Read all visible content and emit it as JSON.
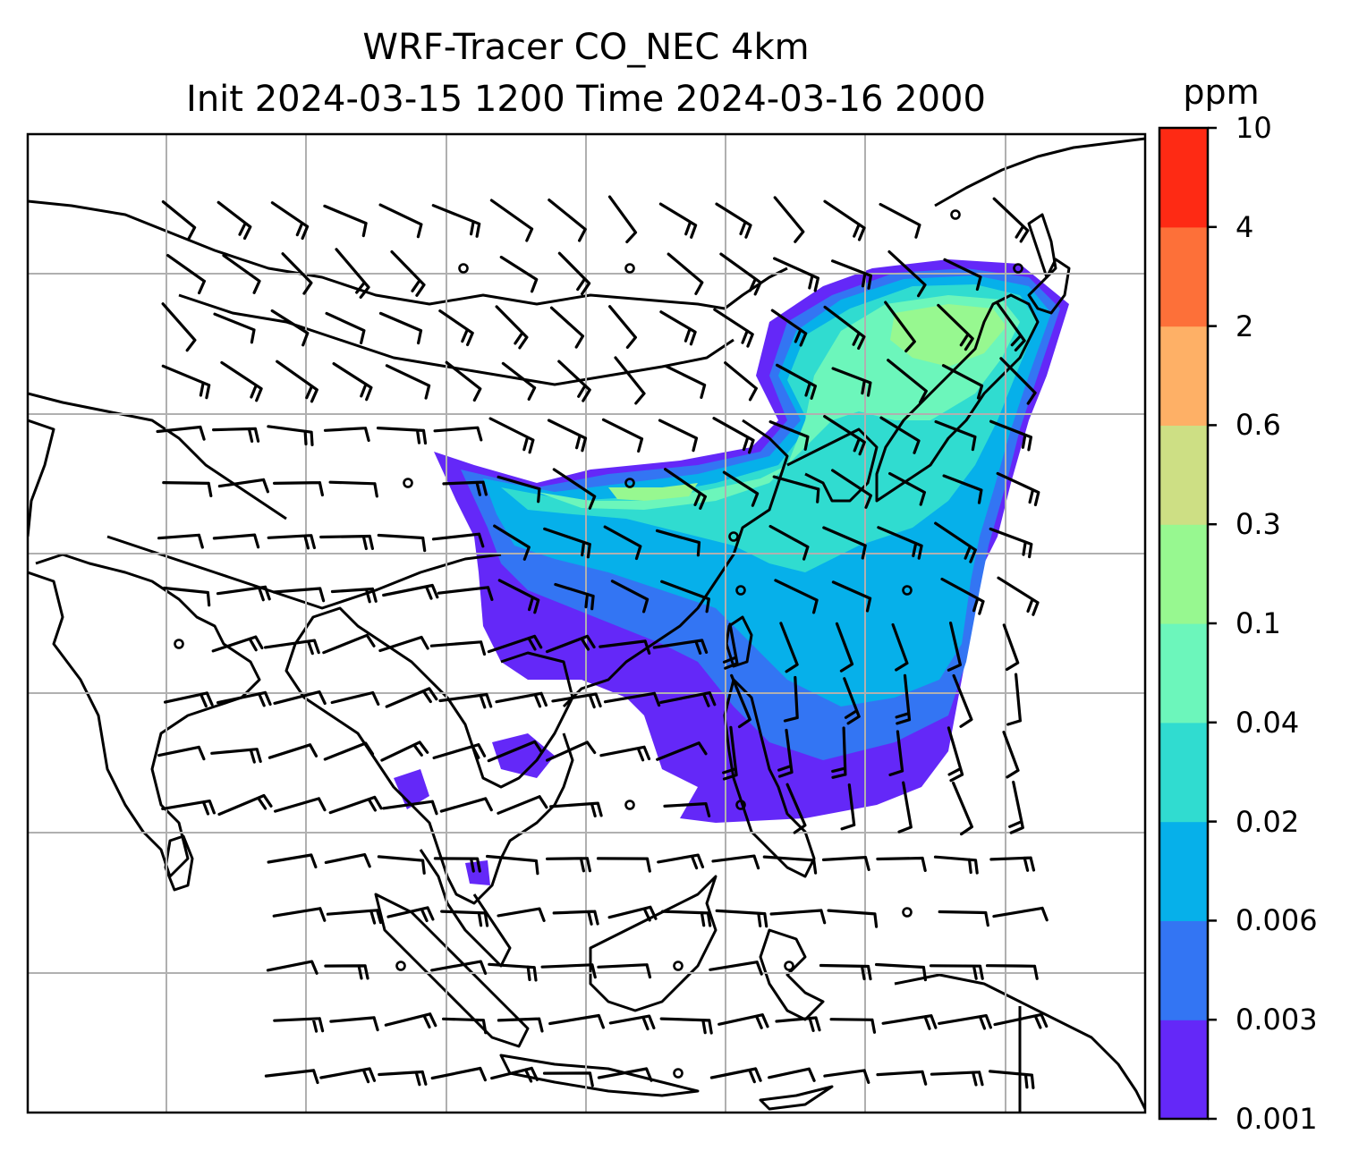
{
  "title": {
    "line1": "WRF-Tracer CO_NEC 4km",
    "line2": "Init 2024-03-15 1200 Time 2024-03-16 2000"
  },
  "colorbar": {
    "unit": "ppm",
    "levels": [
      "0.001",
      "0.003",
      "0.006",
      "0.02",
      "0.04",
      "0.1",
      "0.3",
      "0.6",
      "2",
      "4",
      "10"
    ],
    "colors": [
      "#6428f8",
      "#3375f3",
      "#06b0ea",
      "#30dcd0",
      "#6cf6bb",
      "#97f890",
      "#cddf84",
      "#feb066",
      "#fd7039",
      "#fe2a14"
    ]
  },
  "map": {
    "gridlines": true,
    "coastline_color": "#000000",
    "gridline_color": "#b0b0b0"
  }
}
